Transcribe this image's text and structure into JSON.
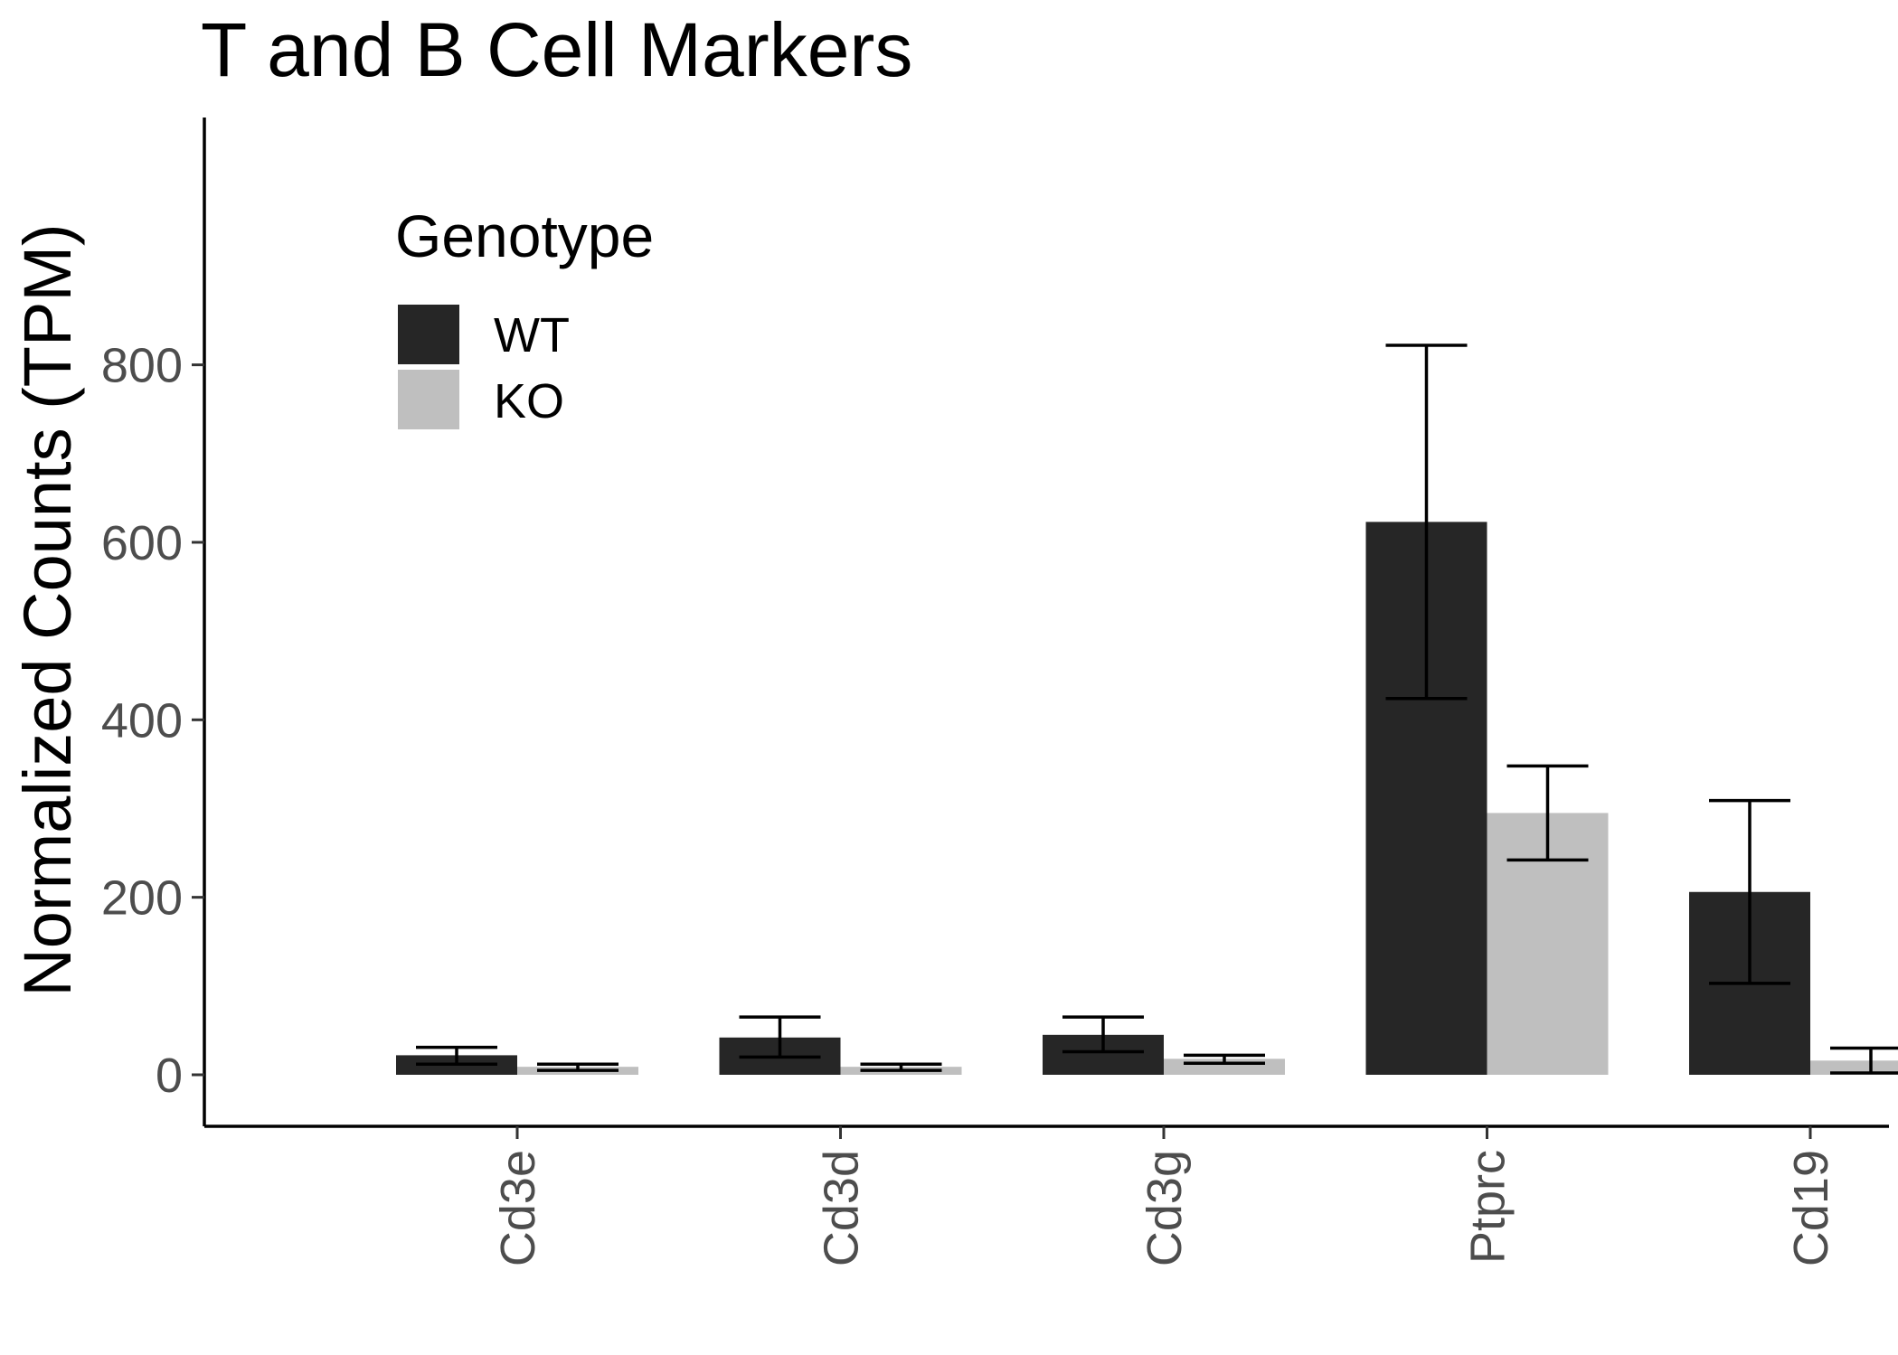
{
  "chart_data": {
    "type": "bar",
    "title": "T and B Cell Markers",
    "xlabel": "",
    "ylabel": "Normalized Counts (TPM)",
    "categories": [
      "Cd3e",
      "Cd3d",
      "Cd3g",
      "Ptprc",
      "Cd19"
    ],
    "ylim": [
      -40,
      865
    ],
    "yticks": [
      0,
      200,
      400,
      600,
      800
    ],
    "grid": false,
    "legend": {
      "title": "Genotype",
      "placement": "top-left (inside plot)",
      "entries": [
        "WT",
        "KO"
      ]
    },
    "series": [
      {
        "name": "WT",
        "color": "#262626",
        "values": [
          22,
          42,
          45,
          623,
          206
        ],
        "error_low": [
          12,
          20,
          26,
          424,
          103
        ],
        "error_high": [
          31,
          65,
          65,
          822,
          309
        ]
      },
      {
        "name": "KO",
        "color": "#bfbfbf",
        "values": [
          9,
          9,
          18,
          295,
          16
        ],
        "error_low": [
          5,
          5,
          13,
          242,
          2
        ],
        "error_high": [
          12,
          12,
          22,
          348,
          30
        ]
      }
    ]
  }
}
